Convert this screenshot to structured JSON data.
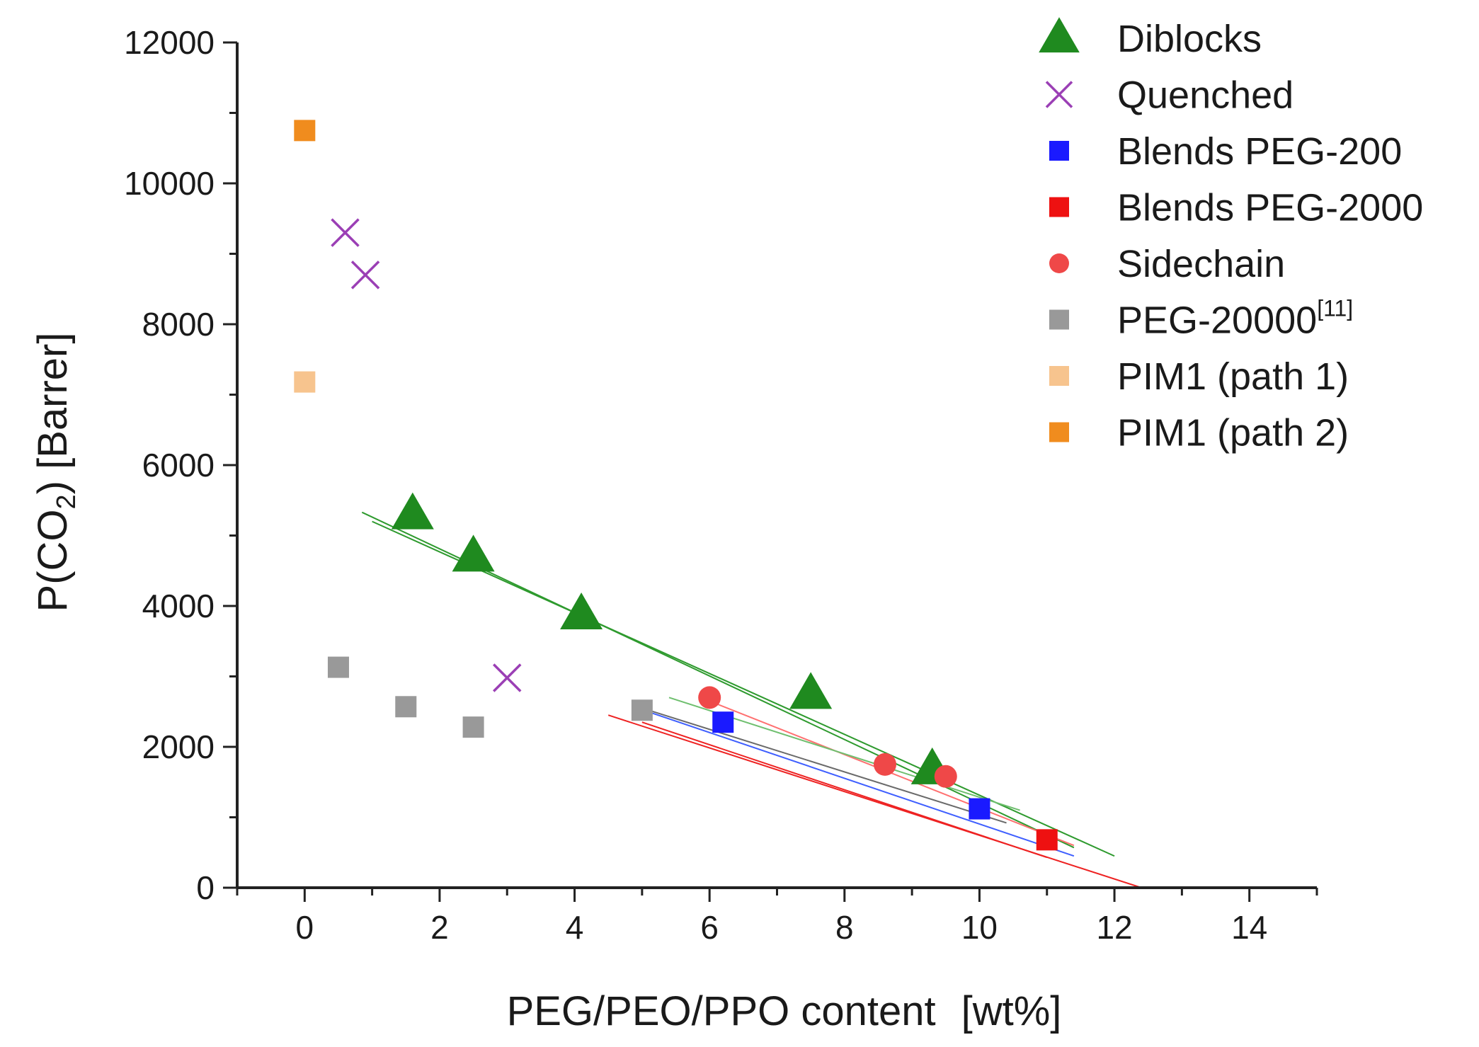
{
  "chart_data": {
    "type": "scatter",
    "xlabel": "PEG/PEO/PPO content",
    "xlabel_unit": "[wt%]",
    "ylabel_main": "P(CO",
    "ylabel_sub": "2",
    "ylabel_tail": ") [Barrer]",
    "xlim": [
      -1,
      15
    ],
    "ylim": [
      0,
      12000
    ],
    "xticks": [
      0,
      2,
      4,
      6,
      8,
      10,
      12,
      14
    ],
    "yticks": [
      0,
      2000,
      4000,
      6000,
      8000,
      10000,
      12000
    ],
    "legend_position": "top-right",
    "series": [
      {
        "name": "Diblocks",
        "superscript": "",
        "marker": "triangle",
        "color": "#1f8a1f",
        "points": [
          [
            1.6,
            5300
          ],
          [
            2.5,
            4700
          ],
          [
            4.1,
            3880
          ],
          [
            7.5,
            2750
          ],
          [
            9.3,
            1680
          ]
        ]
      },
      {
        "name": "Quenched",
        "superscript": "",
        "marker": "x",
        "color": "#9b3fb5",
        "points": [
          [
            0.6,
            9300
          ],
          [
            0.9,
            8700
          ],
          [
            3.0,
            2980
          ]
        ]
      },
      {
        "name": "Blends PEG-200",
        "superscript": "",
        "marker": "square",
        "color": "#1a1aff",
        "points": [
          [
            6.2,
            2350
          ],
          [
            10.0,
            1120
          ]
        ]
      },
      {
        "name": "Blends PEG-2000",
        "superscript": "",
        "marker": "square",
        "color": "#ee1111",
        "points": [
          [
            11.0,
            680
          ]
        ]
      },
      {
        "name": "Sidechain",
        "superscript": "",
        "marker": "circle",
        "color": "#ef4848",
        "points": [
          [
            6.0,
            2700
          ],
          [
            8.6,
            1750
          ],
          [
            9.5,
            1580
          ]
        ]
      },
      {
        "name": "PEG-20000",
        "superscript": "[11]",
        "marker": "square",
        "color": "#999999",
        "points": [
          [
            0.5,
            3130
          ],
          [
            1.5,
            2570
          ],
          [
            2.5,
            2280
          ],
          [
            5.0,
            2520
          ]
        ]
      },
      {
        "name": "PIM1 (path 1)",
        "superscript": "",
        "marker": "square",
        "color": "#f7c48e",
        "points": [
          [
            0.0,
            7180
          ]
        ]
      },
      {
        "name": "PIM1 (path 2)",
        "superscript": "",
        "marker": "square",
        "color": "#f08c1e",
        "points": [
          [
            0.0,
            10750
          ]
        ]
      }
    ],
    "fit_lines": [
      {
        "name": "diblocks-fit-a",
        "color": "#2e9a2e",
        "x": [
          0.85,
          11.4
        ],
        "y": [
          5330,
          570
        ]
      },
      {
        "name": "diblocks-fit-b",
        "color": "#2e9a2e",
        "x": [
          1.0,
          12.0
        ],
        "y": [
          5200,
          450
        ]
      },
      {
        "name": "peg200-fit",
        "color": "#3f5fff",
        "x": [
          4.9,
          11.4
        ],
        "y": [
          2560,
          450
        ]
      },
      {
        "name": "peg2000-fit-a",
        "color": "#ee2222",
        "x": [
          4.5,
          12.4
        ],
        "y": [
          2450,
          0
        ]
      },
      {
        "name": "peg2000-fit-b",
        "color": "#ee2222",
        "x": [
          5.0,
          11.0
        ],
        "y": [
          2350,
          430
        ]
      },
      {
        "name": "sidechain-fit",
        "color": "#ff7070",
        "x": [
          6.0,
          11.4
        ],
        "y": [
          2650,
          600
        ]
      },
      {
        "name": "peg20000-fit",
        "color": "#6a6a6a",
        "x": [
          5.0,
          10.4
        ],
        "y": [
          2550,
          920
        ]
      },
      {
        "name": "sidechain-fit-green",
        "color": "#6fbf6f",
        "x": [
          5.4,
          10.6
        ],
        "y": [
          2700,
          1100
        ]
      }
    ]
  }
}
